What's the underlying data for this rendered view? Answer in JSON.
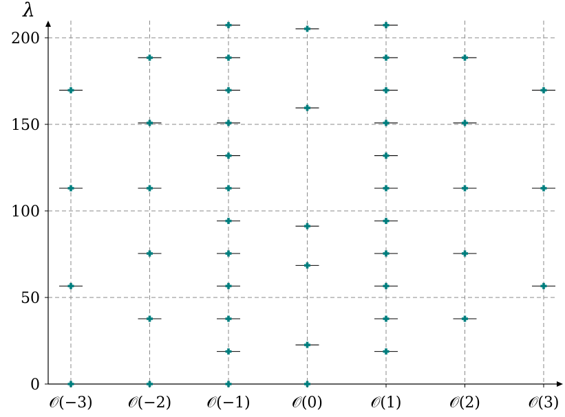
{
  "chart_data": {
    "type": "scatter",
    "title": "",
    "xlabel": "",
    "ylabel": "λ",
    "categories": [
      "𝒪(−3)",
      "𝒪(−2)",
      "𝒪(−1)",
      "𝒪(0)",
      "𝒪(1)",
      "𝒪(2)",
      "𝒪(3)"
    ],
    "y_ticks": [
      0,
      50,
      100,
      150,
      200
    ],
    "ylim": [
      0,
      210
    ],
    "grid": true,
    "colors": {
      "marker": "#007f7f",
      "grid": "#8a8a8a",
      "axis": "#000000",
      "errorbar": "#000000"
    },
    "series": [
      {
        "points": [
          {
            "x": "𝒪(−3)",
            "y": 0
          },
          {
            "x": "𝒪(−3)",
            "y": 56.6
          },
          {
            "x": "𝒪(−3)",
            "y": 113.1
          },
          {
            "x": "𝒪(−3)",
            "y": 169.7
          },
          {
            "x": "𝒪(−2)",
            "y": 0
          },
          {
            "x": "𝒪(−2)",
            "y": 37.7
          },
          {
            "x": "𝒪(−2)",
            "y": 75.4
          },
          {
            "x": "𝒪(−2)",
            "y": 113.1
          },
          {
            "x": "𝒪(−2)",
            "y": 150.8
          },
          {
            "x": "𝒪(−2)",
            "y": 188.5
          },
          {
            "x": "𝒪(−1)",
            "y": 0
          },
          {
            "x": "𝒪(−1)",
            "y": 18.8
          },
          {
            "x": "𝒪(−1)",
            "y": 37.7
          },
          {
            "x": "𝒪(−1)",
            "y": 56.6
          },
          {
            "x": "𝒪(−1)",
            "y": 75.4
          },
          {
            "x": "𝒪(−1)",
            "y": 94.2
          },
          {
            "x": "𝒪(−1)",
            "y": 113.1
          },
          {
            "x": "𝒪(−1)",
            "y": 131.9
          },
          {
            "x": "𝒪(−1)",
            "y": 150.8
          },
          {
            "x": "𝒪(−1)",
            "y": 169.7
          },
          {
            "x": "𝒪(−1)",
            "y": 188.5
          },
          {
            "x": "𝒪(−1)",
            "y": 207.3
          },
          {
            "x": "𝒪(0)",
            "y": 0
          },
          {
            "x": "𝒪(0)",
            "y": 22.6
          },
          {
            "x": "𝒪(0)",
            "y": 68.5
          },
          {
            "x": "𝒪(0)",
            "y": 91.2
          },
          {
            "x": "𝒪(0)",
            "y": 159.5
          },
          {
            "x": "𝒪(0)",
            "y": 205.2
          },
          {
            "x": "𝒪(1)",
            "y": 18.8
          },
          {
            "x": "𝒪(1)",
            "y": 37.7
          },
          {
            "x": "𝒪(1)",
            "y": 56.6
          },
          {
            "x": "𝒪(1)",
            "y": 75.4
          },
          {
            "x": "𝒪(1)",
            "y": 94.2
          },
          {
            "x": "𝒪(1)",
            "y": 113.1
          },
          {
            "x": "𝒪(1)",
            "y": 131.9
          },
          {
            "x": "𝒪(1)",
            "y": 150.8
          },
          {
            "x": "𝒪(1)",
            "y": 169.7
          },
          {
            "x": "𝒪(1)",
            "y": 188.5
          },
          {
            "x": "𝒪(1)",
            "y": 207.3
          },
          {
            "x": "𝒪(2)",
            "y": 37.7
          },
          {
            "x": "𝒪(2)",
            "y": 75.4
          },
          {
            "x": "𝒪(2)",
            "y": 113.1
          },
          {
            "x": "𝒪(2)",
            "y": 150.8
          },
          {
            "x": "𝒪(2)",
            "y": 188.5
          },
          {
            "x": "𝒪(3)",
            "y": 56.6
          },
          {
            "x": "𝒪(3)",
            "y": 113.1
          },
          {
            "x": "𝒪(3)",
            "y": 169.7
          }
        ]
      }
    ]
  }
}
